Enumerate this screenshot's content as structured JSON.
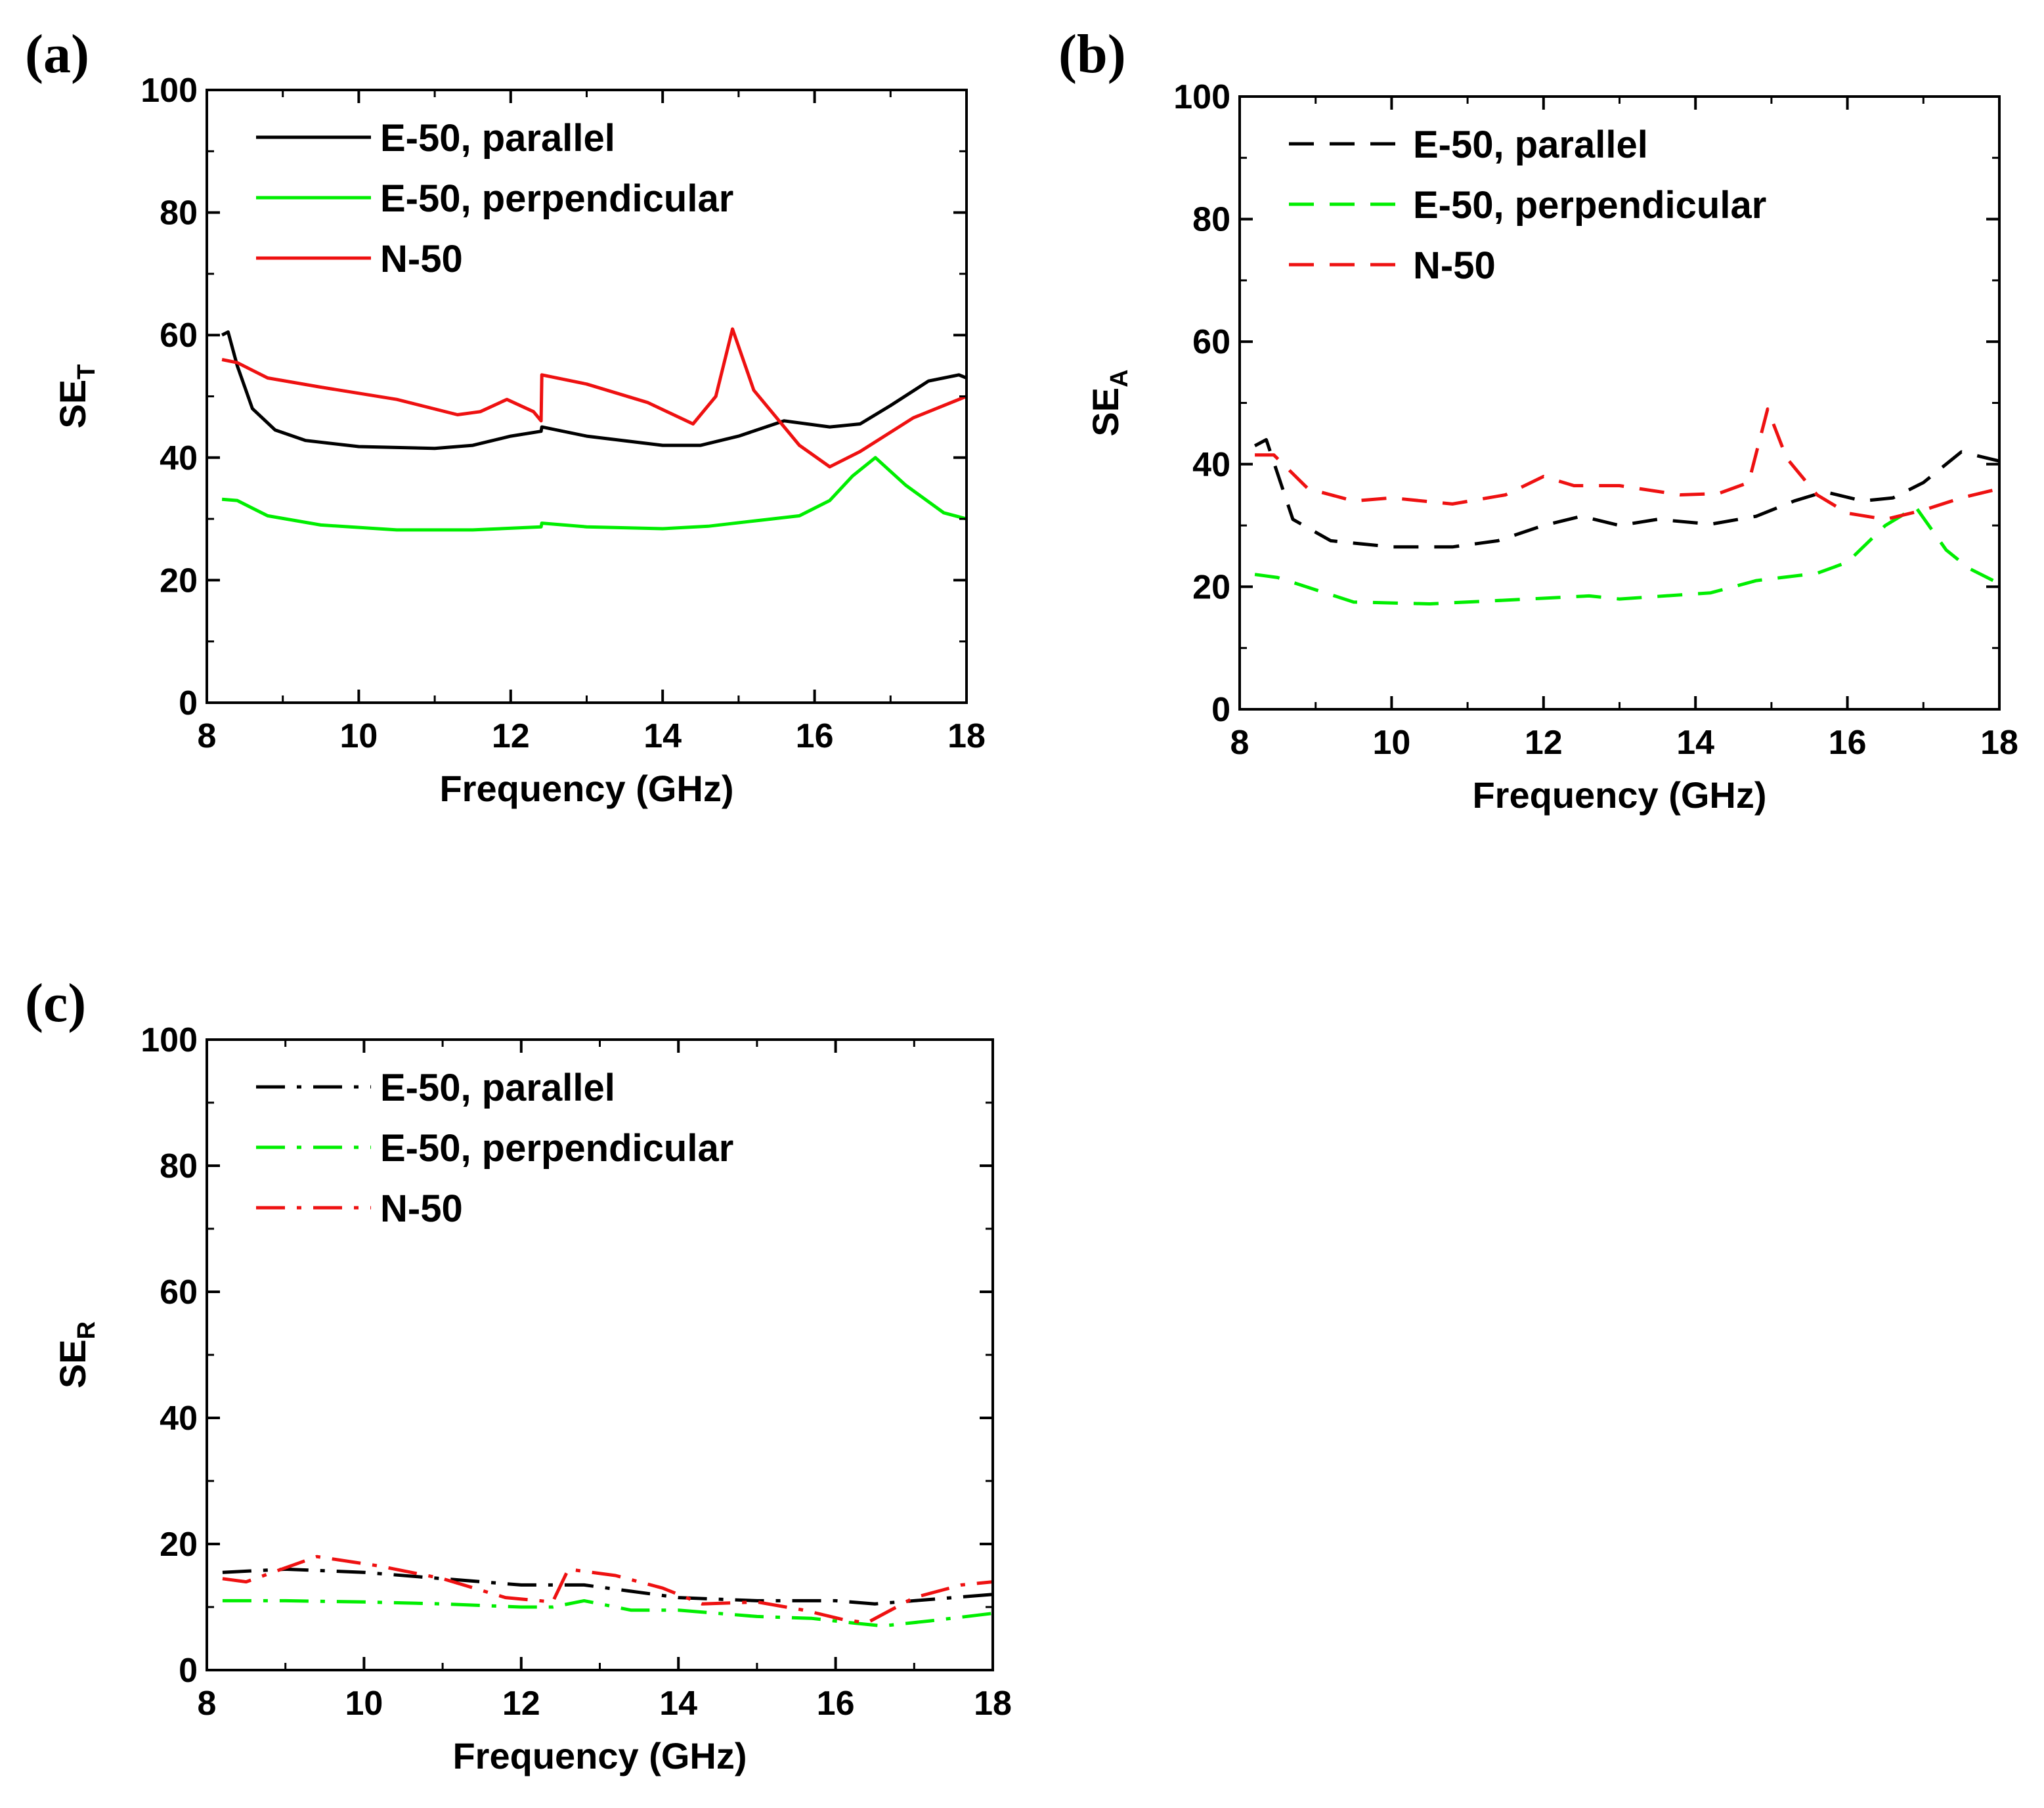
{
  "figure": {
    "panels": [
      "(a)",
      "(b)",
      "(c)"
    ]
  },
  "chart_data": [
    {
      "type": "line",
      "panel": "(a)",
      "xlabel": "Frequency (GHz)",
      "ylabel": {
        "main": "SE",
        "sub": "T"
      },
      "xlim": [
        8,
        18
      ],
      "ylim": [
        0,
        100
      ],
      "xticks": [
        8,
        10,
        12,
        14,
        16,
        18
      ],
      "yticks": [
        0,
        20,
        40,
        60,
        80,
        100
      ],
      "legend_position": "top-left",
      "series": [
        {
          "name": "E-50, parallel",
          "color": "#000000",
          "style": "solid",
          "x": [
            8.2,
            8.28,
            8.4,
            8.6,
            8.9,
            9.3,
            10,
            11,
            11.5,
            12,
            12.4,
            12.41,
            13,
            14,
            14.5,
            15,
            15.6,
            16.2,
            16.6,
            17,
            17.5,
            17.9,
            18
          ],
          "y": [
            60,
            60.5,
            55,
            48,
            44.5,
            42.8,
            41.8,
            41.5,
            42,
            43.5,
            44.3,
            45,
            43.5,
            42,
            42,
            43.5,
            46,
            45,
            45.5,
            48.5,
            52.5,
            53.5,
            53
          ]
        },
        {
          "name": "E-50, perpendicular",
          "color": "#00ee00",
          "style": "solid",
          "x": [
            8.2,
            8.4,
            8.8,
            9.5,
            10.5,
            11.5,
            12.4,
            12.41,
            13,
            14,
            14.6,
            15.3,
            15.8,
            16.2,
            16.5,
            16.8,
            17.2,
            17.7,
            18
          ],
          "y": [
            33.2,
            33,
            30.5,
            29,
            28.2,
            28.2,
            28.7,
            29.3,
            28.7,
            28.4,
            28.8,
            29.8,
            30.5,
            33,
            37,
            40,
            35.5,
            31,
            30
          ]
        },
        {
          "name": "N-50",
          "color": "#ee1111",
          "style": "solid",
          "x": [
            8.2,
            8.4,
            8.8,
            9.5,
            10.5,
            11.3,
            11.6,
            11.95,
            12.3,
            12.4,
            12.41,
            13,
            13.8,
            14.4,
            14.7,
            14.92,
            15.2,
            15.8,
            16.2,
            16.6,
            17.3,
            18
          ],
          "y": [
            56,
            55.5,
            53,
            51.5,
            49.5,
            47,
            47.5,
            49.5,
            47.5,
            46,
            53.5,
            52,
            49,
            45.5,
            50,
            61,
            51,
            42,
            38.5,
            41,
            46.5,
            50
          ]
        }
      ]
    },
    {
      "type": "line",
      "panel": "(b)",
      "xlabel": "Frequency (GHz)",
      "ylabel": {
        "main": "SE",
        "sub": "A"
      },
      "xlim": [
        8,
        18
      ],
      "ylim": [
        0,
        100
      ],
      "xticks": [
        8,
        10,
        12,
        14,
        16,
        18
      ],
      "yticks": [
        0,
        20,
        40,
        60,
        80,
        100
      ],
      "legend_position": "top-left",
      "series": [
        {
          "name": "E-50, parallel",
          "color": "#000000",
          "style": "dashed",
          "x": [
            8.2,
            8.35,
            8.7,
            9.2,
            10,
            10.8,
            11.4,
            12,
            12.5,
            13,
            13.5,
            14.2,
            14.8,
            15.3,
            15.7,
            16.2,
            16.6,
            17,
            17.5,
            18
          ],
          "y": [
            43,
            44,
            31,
            27.5,
            26.5,
            26.5,
            27.5,
            30,
            31.5,
            30,
            31,
            30.2,
            31.5,
            34,
            35.5,
            34,
            34.5,
            37,
            42,
            40.5
          ]
        },
        {
          "name": "E-50, perpendicular",
          "color": "#00ee00",
          "style": "dashed",
          "x": [
            8.2,
            8.5,
            9.5,
            10.5,
            11.5,
            12.6,
            13,
            14.2,
            14.8,
            15.6,
            16,
            16.5,
            16.9,
            17.3,
            17.6,
            18
          ],
          "y": [
            22,
            21.5,
            17.5,
            17.2,
            17.8,
            18.5,
            18,
            19,
            21,
            22.2,
            24,
            30,
            33,
            26,
            23,
            20.5
          ]
        },
        {
          "name": "N-50",
          "color": "#ee1111",
          "style": "dashed",
          "x": [
            8.2,
            8.45,
            8.9,
            9.5,
            10,
            10.8,
            11.5,
            12,
            12.4,
            13,
            13.8,
            14.3,
            14.7,
            14.95,
            15.2,
            15.6,
            16,
            16.5,
            17,
            17.5,
            18
          ],
          "y": [
            41.5,
            41.5,
            36,
            34,
            34.5,
            33.5,
            35,
            38,
            36.5,
            36.5,
            35,
            35.2,
            37,
            49,
            41,
            35,
            32,
            31,
            32.5,
            34.5,
            36
          ]
        }
      ]
    },
    {
      "type": "line",
      "panel": "(c)",
      "xlabel": "Frequency (GHz)",
      "ylabel": {
        "main": "SE",
        "sub": "R"
      },
      "xlim": [
        8,
        18
      ],
      "ylim": [
        0,
        100
      ],
      "xticks": [
        8,
        10,
        12,
        14,
        16,
        18
      ],
      "yticks": [
        0,
        20,
        40,
        60,
        80,
        100
      ],
      "legend_position": "top-left",
      "series": [
        {
          "name": "E-50, parallel",
          "color": "#000000",
          "style": "dashdot",
          "x": [
            8.2,
            9,
            10,
            11,
            12,
            12.8,
            13.4,
            14,
            15,
            16,
            16.5,
            17,
            18
          ],
          "y": [
            15.5,
            16,
            15.5,
            14.5,
            13.5,
            13.5,
            12.5,
            11.5,
            11,
            11,
            10.5,
            11,
            12
          ]
        },
        {
          "name": "E-50, perpendicular",
          "color": "#00ee00",
          "style": "dashdot",
          "x": [
            8.2,
            9,
            10,
            11,
            12,
            12.4,
            12.8,
            13.4,
            14,
            15,
            15.7,
            16.2,
            16.6,
            17.2,
            18
          ],
          "y": [
            11,
            11,
            10.8,
            10.5,
            10,
            10,
            11,
            9.5,
            9.5,
            8.5,
            8.2,
            7.5,
            7,
            7.8,
            9
          ]
        },
        {
          "name": "N-50",
          "color": "#ee1111",
          "style": "dashdot",
          "x": [
            8.2,
            8.5,
            9.4,
            10.2,
            11,
            11.8,
            12.4,
            12.6,
            13.2,
            13.8,
            14.3,
            15,
            15.6,
            16.1,
            16.4,
            17,
            17.6,
            18
          ],
          "y": [
            14.5,
            14,
            18,
            16.5,
            14.5,
            11.5,
            10.8,
            16,
            15,
            13,
            10.5,
            10.8,
            9.5,
            8,
            7.5,
            11.5,
            13.5,
            14
          ]
        }
      ]
    }
  ]
}
